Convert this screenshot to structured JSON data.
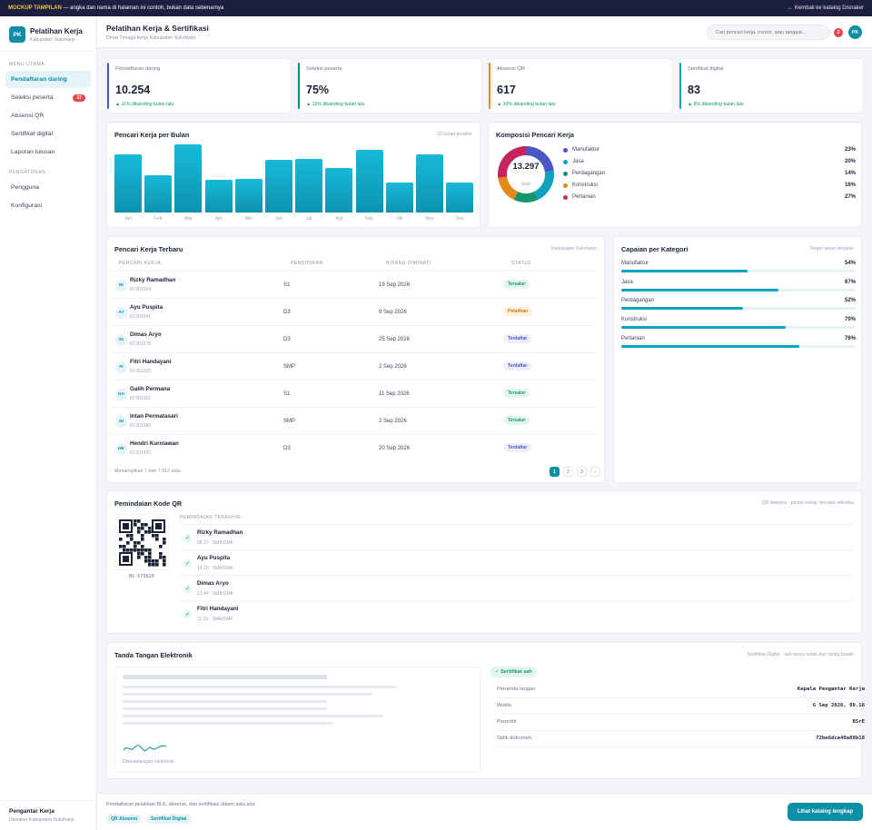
{
  "topbar": {
    "tag": "MOCKUP TAMPILAN",
    "note": "— angka dan nama di halaman ini contoh, bukan data sebenarnya",
    "back_link": "← Kembali ke katalog Disnaker"
  },
  "sidebar": {
    "logo": "PK",
    "app_name": "Pelatihan Kerja",
    "app_sub": "Kabupaten Sukoharjo",
    "section_main": "MENU UTAMA",
    "items_main": [
      {
        "label": "Pendaftaran daring",
        "active": true
      },
      {
        "label": "Seleksi peserta",
        "badge": "37"
      },
      {
        "label": "Absensi QR"
      },
      {
        "label": "Sertifikat digital"
      },
      {
        "label": "Laporan lulusan"
      }
    ],
    "section_settings": "PENGATURAN",
    "items_settings": [
      {
        "label": "Pengguna"
      },
      {
        "label": "Konfigurasi"
      }
    ],
    "footer_name": "Pengantar Kerja",
    "footer_sub": "Disnaker Kabupaten Sukoharjo"
  },
  "header": {
    "title": "Pelatihan Kerja & Sertifikasi",
    "subtitle": "Dinas Tenaga Kerja Kabupaten Sukoharjo",
    "search_placeholder": "Cari pencari kerja, nomor, atau tanggal...",
    "notif_count": "2",
    "avatar": "PK"
  },
  "stats": [
    {
      "label": "Pendaftaran daring",
      "value": "10.254",
      "delta": "▲ 11% dibanding bulan lalu",
      "color": "#4a57c4"
    },
    {
      "label": "Seleksi peserta",
      "value": "75%",
      "delta": "▲ 15% dibanding bulan lalu",
      "color": "#14946b"
    },
    {
      "label": "Absensi QR",
      "value": "617",
      "delta": "▲ 10% dibanding bulan lalu",
      "color": "#e38a1a"
    },
    {
      "label": "Sertifikat digital",
      "value": "83",
      "delta": "▲ 8% dibanding bulan lalu",
      "color": "#0ea3bf"
    }
  ],
  "monthly": {
    "title": "Pencari Kerja per Bulan",
    "note": "12 bulan terakhir"
  },
  "composition": {
    "title": "Komposisi Pencari Kerja",
    "total": "13.297",
    "total_label": "total"
  },
  "chart_data": [
    {
      "type": "bar",
      "title": "Pencari Kerja per Bulan",
      "categories": [
        "Jan",
        "Feb",
        "Mar",
        "Apr",
        "Mei",
        "Jun",
        "Jul",
        "Agt",
        "Sep",
        "Okt",
        "Nov",
        "Des"
      ],
      "values": [
        85,
        55,
        100,
        48,
        50,
        77,
        79,
        65,
        92,
        44,
        85,
        44
      ],
      "grid": false
    },
    {
      "type": "pie",
      "title": "Komposisi Pencari Kerja",
      "categories": [
        "Manufaktur",
        "Jasa",
        "Perdagangan",
        "Konstruksi",
        "Pertanian"
      ],
      "values": [
        23,
        20,
        14,
        16,
        27
      ],
      "colors": [
        "#4a57c4",
        "#0ea3bf",
        "#14946b",
        "#e38a1a",
        "#c8245c"
      ],
      "legend": "right"
    },
    {
      "type": "bar",
      "title": "Capaian per Kategori",
      "categories": [
        "Manufaktur",
        "Jasa",
        "Perdagangan",
        "Konstruksi",
        "Pertanian"
      ],
      "values": [
        54,
        67,
        52,
        70,
        76
      ],
      "xlim": [
        0,
        100
      ]
    }
  ],
  "recent": {
    "title": "Pencari Kerja Terbaru",
    "note": "Kabupaten Sukoharjo",
    "columns": [
      "PENCARI KERJA",
      "PENDIDIKAN",
      "BIDANG DIMINATI",
      "STATUS"
    ],
    "rows": [
      {
        "initials": "RI",
        "name": "Rizky Ramadhan",
        "id": "ID 001204",
        "edu": "S1",
        "date": "19 Sep 2026",
        "status": "Tersalur",
        "kind": "s-green"
      },
      {
        "initials": "AY",
        "name": "Ayu Puspita",
        "id": "ID 001241",
        "edu": "D3",
        "date": "9 Sep 2026",
        "status": "Pelatihan",
        "kind": "s-orange"
      },
      {
        "initials": "DI",
        "name": "Dimas Aryo",
        "id": "ID 001278",
        "edu": "D3",
        "date": "25 Sep 2026",
        "status": "Terdaftar",
        "kind": "s-indigo"
      },
      {
        "initials": "FI",
        "name": "Fitri Handayani",
        "id": "ID 001315",
        "edu": "SMP",
        "date": "2 Sep 2026",
        "status": "Terdaftar",
        "kind": "s-indigo"
      },
      {
        "initials": "GA",
        "name": "Galih Permana",
        "id": "ID 001352",
        "edu": "S1",
        "date": "11 Sep 2026",
        "status": "Tersalur",
        "kind": "s-green"
      },
      {
        "initials": "IN",
        "name": "Intan Permatasari",
        "id": "ID 001389",
        "edu": "SMP",
        "date": "2 Sep 2026",
        "status": "Tersalur",
        "kind": "s-green"
      },
      {
        "initials": "HE",
        "name": "Hendri Kurniawan",
        "id": "ID 001426",
        "edu": "D3",
        "date": "20 Sep 2026",
        "status": "Terdaftar",
        "kind": "s-indigo"
      }
    ],
    "footer": "Menampilkan 7 dari 7.912 data",
    "pages": [
      "1",
      "2",
      "3",
      "›"
    ]
  },
  "achievement": {
    "title": "Capaian per Kategori",
    "note": "Target tahun berjalan",
    "items": [
      {
        "name": "Manufaktur",
        "pct": "54%",
        "value": 54
      },
      {
        "name": "Jasa",
        "pct": "67%",
        "value": 67
      },
      {
        "name": "Perdagangan",
        "pct": "52%",
        "value": 52
      },
      {
        "name": "Konstruksi",
        "pct": "70%",
        "value": 70
      },
      {
        "name": "Pertanian",
        "pct": "76%",
        "value": 76
      }
    ]
  },
  "qr": {
    "title": "Pemindaian Kode QR",
    "note": "QR Absensi · pindai sekali, tercatat seketika",
    "code": "BS-579828",
    "recent_title": "PEMINDAIAN TERAKHIR",
    "scans": [
      {
        "name": "Rizky Ramadhan",
        "meta": "08.27 · SMA/SMK"
      },
      {
        "name": "Ayu Puspita",
        "meta": "14.10 · SMA/SMK"
      },
      {
        "name": "Dimas Aryo",
        "meta": "13.49 · SMA/SMK"
      },
      {
        "name": "Fitri Handayani",
        "meta": "11.13 · SMA/SMK"
      }
    ]
  },
  "esign": {
    "title": "Tanda Tangan Elektronik",
    "note": "Sertifikat Digital · sah tanpa cetak dan tanda basah",
    "signed_caption": "Ditandatangani elektronik",
    "badge": "✓ Sertifikat sah",
    "meta": [
      {
        "k": "Penanda tangan",
        "v": "Kepala Pengantar Kerja"
      },
      {
        "k": "Waktu",
        "v": "6 Sep 2026, 09.16"
      },
      {
        "k": "Penerbit",
        "v": "BSrE"
      },
      {
        "k": "Sidik dokumen",
        "v": "72be6dca40a88b18"
      }
    ]
  },
  "footer": {
    "text": "Pendaftaran pelatihan BLK, absensi, dan sertifikasi dalam satu alur.",
    "chip1": "QR Absensi",
    "chip2": "Sertifikat Digital",
    "cta": "Lihat katalog lengkap"
  }
}
